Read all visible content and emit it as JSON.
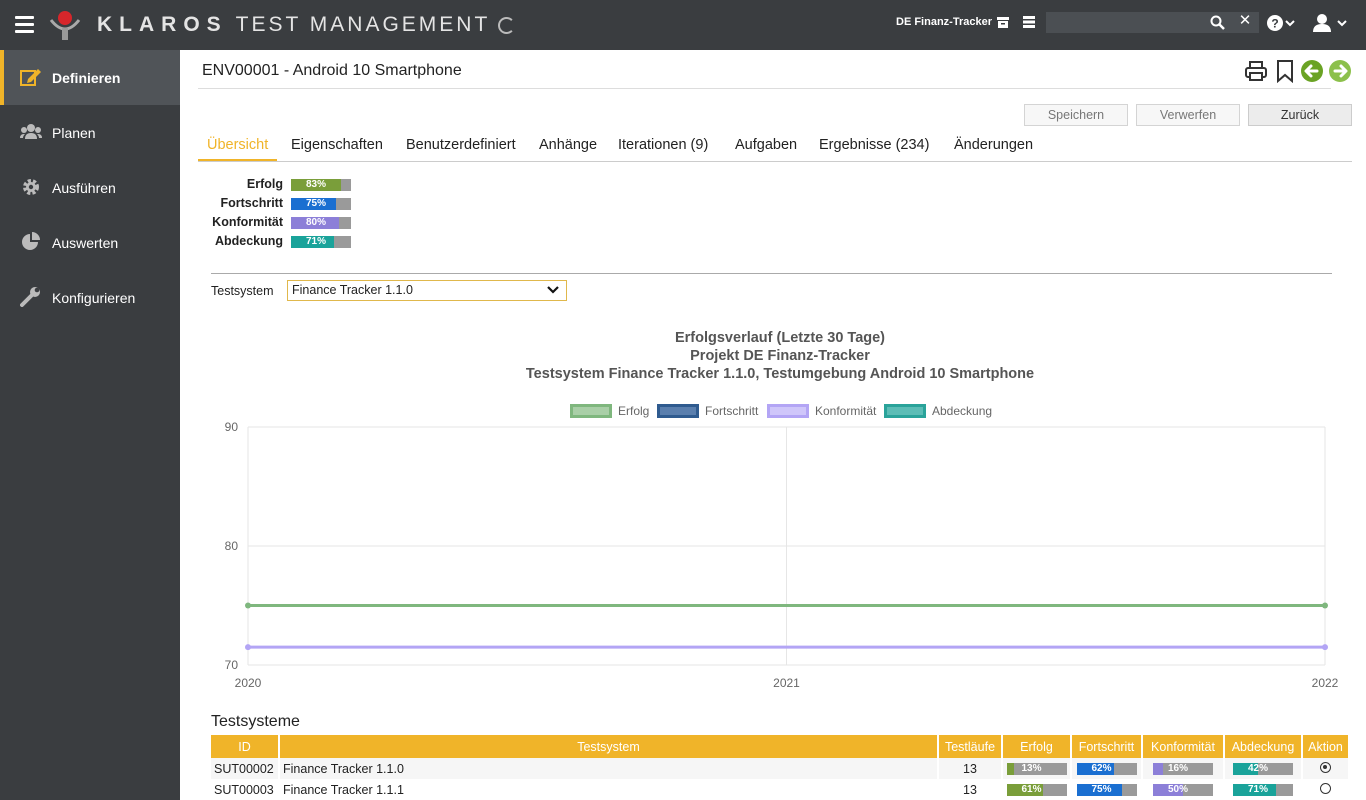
{
  "app": {
    "brand_main": "KLAROS",
    "brand_sub": "TEST MANAGEMENT",
    "project": "DE Finanz-Tracker",
    "search_placeholder": ""
  },
  "sidebar": {
    "items": [
      {
        "label": "Definieren",
        "icon": "edit-icon",
        "active": true
      },
      {
        "label": "Planen",
        "icon": "users-icon",
        "active": false
      },
      {
        "label": "Ausführen",
        "icon": "gear-icon",
        "active": false
      },
      {
        "label": "Auswerten",
        "icon": "pie-chart-icon",
        "active": false
      },
      {
        "label": "Konfigurieren",
        "icon": "wrench-icon",
        "active": false
      }
    ]
  },
  "page": {
    "title": "ENV00001 - Android 10 Smartphone",
    "buttons": {
      "save": "Speichern",
      "discard": "Verwerfen",
      "back": "Zurück"
    },
    "tabs": [
      "Übersicht",
      "Eigenschaften",
      "Benutzerdefiniert",
      "Anhänge",
      "Iterationen (9)",
      "Aufgaben",
      "Ergebnisse (234)",
      "Änderungen"
    ]
  },
  "metrics": [
    {
      "label": "Erfolg",
      "value": 83,
      "text": "83%",
      "color": "#7a9e3a"
    },
    {
      "label": "Fortschritt",
      "value": 75,
      "text": "75%",
      "color": "#1a6fd1"
    },
    {
      "label": "Konformität",
      "value": 80,
      "text": "80%",
      "color": "#8c7fd8"
    },
    {
      "label": "Abdeckung",
      "value": 71,
      "text": "71%",
      "color": "#1aa39a"
    }
  ],
  "testsystem_filter": {
    "label": "Testsystem",
    "selected": "Finance Tracker 1.1.0"
  },
  "chart_data": {
    "type": "line",
    "title_lines": [
      "Erfolgsverlauf (Letzte 30 Tage)",
      "Projekt DE Finanz-Tracker",
      "Testsystem Finance Tracker 1.1.0, Testumgebung Android 10 Smartphone"
    ],
    "x": [
      "2020",
      "2021",
      "2022"
    ],
    "ylim": [
      70,
      90
    ],
    "yticks": [
      70,
      80,
      90
    ],
    "series": [
      {
        "name": "Erfolg",
        "color": "#7fb77e",
        "values": [
          75,
          null,
          75
        ]
      },
      {
        "name": "Fortschritt",
        "color": "#2f5b8f",
        "values": [
          null,
          null,
          null
        ]
      },
      {
        "name": "Konformität",
        "color": "#b3a5f5",
        "values": [
          71.5,
          null,
          71.5
        ]
      },
      {
        "name": "Abdeckung",
        "color": "#2aa39a",
        "values": [
          null,
          null,
          null
        ]
      }
    ],
    "grid": true,
    "legend": "top"
  },
  "systems_table": {
    "title": "Testsysteme",
    "headers": [
      "ID",
      "Testsystem",
      "Testläufe",
      "Erfolg",
      "Fortschritt",
      "Konformität",
      "Abdeckung",
      "Aktion"
    ],
    "rows": [
      {
        "id": "SUT00002",
        "name": "Finance Tracker 1.1.0",
        "runs": "13",
        "success": {
          "value": 13,
          "text": "13%"
        },
        "progress": {
          "value": 62,
          "text": "62%"
        },
        "conformity": {
          "value": 16,
          "text": "16%"
        },
        "coverage": {
          "value": 42,
          "text": "42%"
        },
        "selected": true
      },
      {
        "id": "SUT00003",
        "name": "Finance Tracker 1.1.1",
        "runs": "13",
        "success": {
          "value": 61,
          "text": "61%"
        },
        "progress": {
          "value": 75,
          "text": "75%"
        },
        "conformity": {
          "value": 50,
          "text": "50%"
        },
        "coverage": {
          "value": 71,
          "text": "71%"
        },
        "selected": false
      }
    ]
  }
}
